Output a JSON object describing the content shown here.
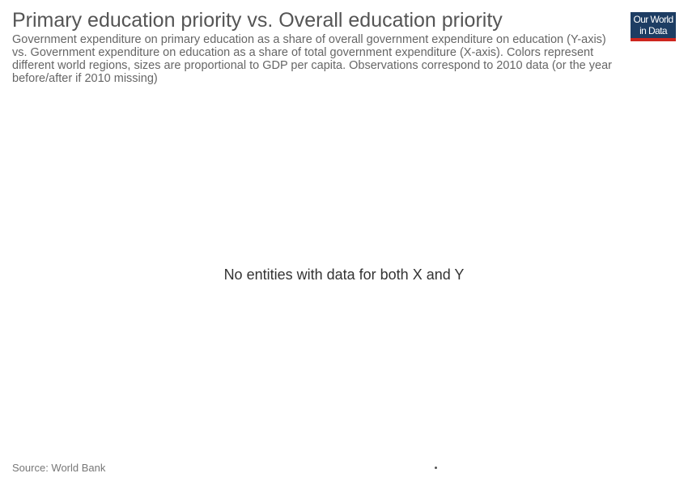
{
  "header": {
    "title": "Primary education priority vs. Overall education priority",
    "subtitle": "Government expenditure on primary education as a share of overall government expenditure on education (Y-axis) vs. Government expenditure on education as a share of total government expenditure (X-axis). Colors represent different world regions, sizes are proportional to GDP per capita. Observations correspond to 2010 data (or the year before/after if 2010 missing)"
  },
  "logo": {
    "line1": "Our World",
    "line2": "in Data",
    "bg_color": "#1d3d63",
    "accent_color": "#ce261e"
  },
  "chart_data": {
    "type": "scatter",
    "title": "Primary education priority vs. Overall education priority",
    "series": [],
    "empty_message": "No entities with data for both X and Y"
  },
  "footer": {
    "source": "Source: World Bank"
  }
}
